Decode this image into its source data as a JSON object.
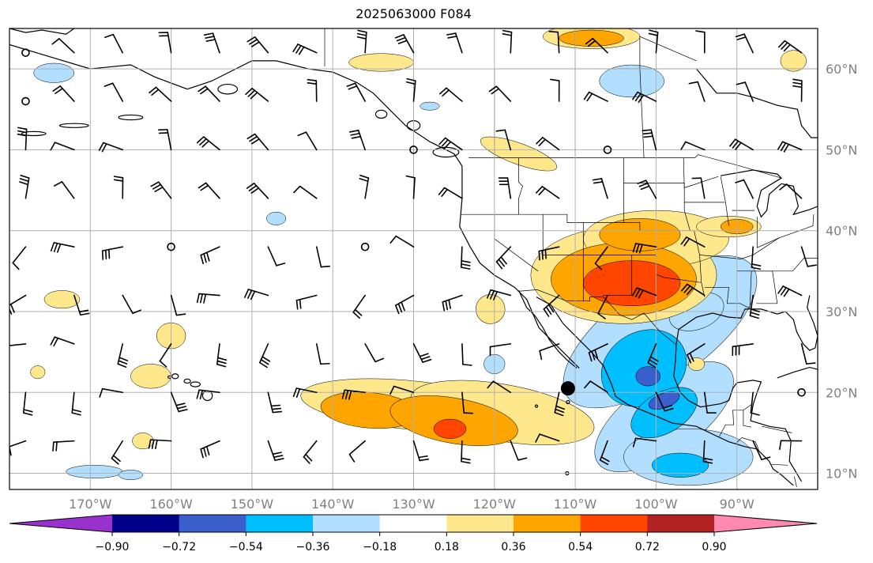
{
  "title": "2025063000 F084",
  "map": {
    "projection": "equirectangular",
    "lon_range": [
      -180,
      -80
    ],
    "lat_range": [
      8,
      65
    ],
    "gridlines": true,
    "lon_ticks": [
      {
        "value": -170,
        "label": "170°W"
      },
      {
        "value": -160,
        "label": "160°W"
      },
      {
        "value": -150,
        "label": "150°W"
      },
      {
        "value": -140,
        "label": "140°W"
      },
      {
        "value": -130,
        "label": "130°W"
      },
      {
        "value": -120,
        "label": "120°W"
      },
      {
        "value": -110,
        "label": "110°W"
      },
      {
        "value": -100,
        "label": "100°W"
      },
      {
        "value": -90,
        "label": "90°W"
      }
    ],
    "lat_ticks": [
      {
        "value": 60,
        "label": "60°N"
      },
      {
        "value": 50,
        "label": "50°N"
      },
      {
        "value": 40,
        "label": "40°N"
      },
      {
        "value": 30,
        "label": "30°N"
      },
      {
        "value": 20,
        "label": "20°N"
      },
      {
        "value": 10,
        "label": "10°N"
      }
    ],
    "marker": {
      "lon": -110.9,
      "lat": 20.5,
      "color": "#000000"
    }
  },
  "colorbar": {
    "extend": "both",
    "colors": [
      "#9932cc",
      "#00008b",
      "#3a5fcd",
      "#00bfff",
      "#b2dfff",
      "#ffffff",
      "#ffe88c",
      "#ffa500",
      "#ff4500",
      "#b22222",
      "#ff89b0"
    ],
    "tick_labels": [
      "−0.90",
      "−0.72",
      "−0.54",
      "−0.36",
      "−0.18",
      "0.18",
      "0.36",
      "0.54",
      "0.72",
      "0.90"
    ]
  },
  "field_colors": {
    "pos1": "#ffe88c",
    "pos2": "#ffa500",
    "pos3": "#ff4500",
    "neg1": "#b2dfff",
    "neg2": "#00bfff",
    "neg3": "#3a5fcd"
  }
}
